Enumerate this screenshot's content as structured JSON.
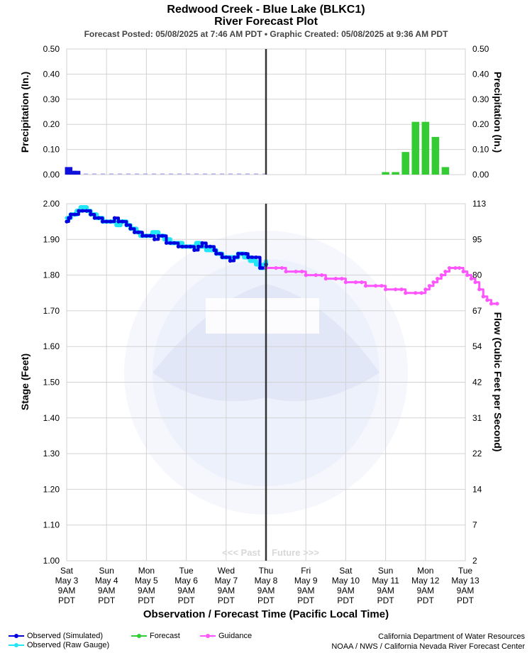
{
  "chart_data": {
    "type": "line",
    "title": "Redwood Creek - Blue Lake (BLKC1)",
    "subtitle": "River Forecast Plot",
    "posted": "Forecast Posted: 05/08/2025 at 7:46 AM PDT  •  Graphic Created: 05/08/2025 at 9:36 AM PDT",
    "x_label": "Observation / Forecast Time (Pacific Local Time)",
    "x_ticks": [
      [
        "Sat",
        "May 3",
        "9AM",
        "PDT"
      ],
      [
        "Sun",
        "May 4",
        "9AM",
        "PDT"
      ],
      [
        "Mon",
        "May 5",
        "9AM",
        "PDT"
      ],
      [
        "Tue",
        "May 6",
        "9AM",
        "PDT"
      ],
      [
        "Wed",
        "May 7",
        "9AM",
        "PDT"
      ],
      [
        "Thu",
        "May 8",
        "9AM",
        "PDT"
      ],
      [
        "Fri",
        "May 9",
        "9AM",
        "PDT"
      ],
      [
        "Sat",
        "May 10",
        "9AM",
        "PDT"
      ],
      [
        "Sun",
        "May 11",
        "9AM",
        "PDT"
      ],
      [
        "Mon",
        "May 12",
        "9AM",
        "PDT"
      ],
      [
        "Tue",
        "May 13",
        "9AM",
        "PDT"
      ]
    ],
    "precip": {
      "y_label": "Precipitation (In.)",
      "y_ticks": [
        "0.00",
        "0.10",
        "0.20",
        "0.30",
        "0.40",
        "0.50"
      ],
      "ylim": [
        0,
        0.5
      ],
      "observed_bars": [
        [
          0.05,
          0.03
        ],
        [
          0.15,
          0.015
        ],
        [
          0.25,
          0.015
        ]
      ],
      "forecast_bars": [
        [
          8.0,
          0.01
        ],
        [
          8.25,
          0.01
        ],
        [
          8.5,
          0.09
        ],
        [
          8.75,
          0.21
        ],
        [
          9.0,
          0.21
        ],
        [
          9.25,
          0.15
        ],
        [
          9.5,
          0.03
        ]
      ]
    },
    "stage": {
      "y_label": "Stage (Feet)",
      "y2_label": "Flow (Cubic Feet per Second)",
      "y_ticks": [
        "1.00",
        "1.10",
        "1.20",
        "1.30",
        "1.40",
        "1.50",
        "1.60",
        "1.70",
        "1.80",
        "1.90",
        "2.00"
      ],
      "y2_ticks": [
        "2",
        "7",
        "14",
        "22",
        "31",
        "42",
        "54",
        "67",
        "80",
        "95",
        "113"
      ],
      "ylim": [
        1.0,
        2.0
      ],
      "now_day": 5.0,
      "past_label": "<<< Past",
      "future_label": "Future >>>",
      "series": [
        {
          "name": "Observed (Raw Gauge)",
          "color": "#22e5f5",
          "points": [
            [
              0,
              1.96
            ],
            [
              0.1,
              1.97
            ],
            [
              0.25,
              1.98
            ],
            [
              0.35,
              1.99
            ],
            [
              0.5,
              1.98
            ],
            [
              0.6,
              1.97
            ],
            [
              0.75,
              1.96
            ],
            [
              0.9,
              1.95
            ],
            [
              1.0,
              1.95
            ],
            [
              1.15,
              1.95
            ],
            [
              1.25,
              1.94
            ],
            [
              1.35,
              1.95
            ],
            [
              1.5,
              1.94
            ],
            [
              1.6,
              1.93
            ],
            [
              1.75,
              1.92
            ],
            [
              1.85,
              1.91
            ],
            [
              2.0,
              1.91
            ],
            [
              2.15,
              1.92
            ],
            [
              2.3,
              1.91
            ],
            [
              2.45,
              1.9
            ],
            [
              2.6,
              1.89
            ],
            [
              2.75,
              1.89
            ],
            [
              2.9,
              1.88
            ],
            [
              3.0,
              1.88
            ],
            [
              3.15,
              1.88
            ],
            [
              3.25,
              1.89
            ],
            [
              3.35,
              1.88
            ],
            [
              3.5,
              1.87
            ],
            [
              3.6,
              1.87
            ],
            [
              3.75,
              1.86
            ],
            [
              3.9,
              1.85
            ],
            [
              4.0,
              1.85
            ],
            [
              4.15,
              1.85
            ],
            [
              4.3,
              1.86
            ],
            [
              4.45,
              1.85
            ],
            [
              4.6,
              1.84
            ],
            [
              4.75,
              1.83
            ],
            [
              4.85,
              1.82
            ],
            [
              4.95,
              1.83
            ],
            [
              5.0,
              1.84
            ]
          ]
        },
        {
          "name": "Observed (Simulated)",
          "color": "#0000e0",
          "points": [
            [
              0,
              1.95
            ],
            [
              0.05,
              1.96
            ],
            [
              0.1,
              1.97
            ],
            [
              0.2,
              1.97
            ],
            [
              0.3,
              1.98
            ],
            [
              0.4,
              1.98
            ],
            [
              0.5,
              1.98
            ],
            [
              0.6,
              1.97
            ],
            [
              0.7,
              1.96
            ],
            [
              0.8,
              1.96
            ],
            [
              0.9,
              1.95
            ],
            [
              1.0,
              1.95
            ],
            [
              1.1,
              1.95
            ],
            [
              1.2,
              1.96
            ],
            [
              1.3,
              1.95
            ],
            [
              1.4,
              1.95
            ],
            [
              1.5,
              1.94
            ],
            [
              1.6,
              1.93
            ],
            [
              1.7,
              1.92
            ],
            [
              1.8,
              1.92
            ],
            [
              1.9,
              1.91
            ],
            [
              2.0,
              1.91
            ],
            [
              2.1,
              1.91
            ],
            [
              2.2,
              1.9
            ],
            [
              2.3,
              1.91
            ],
            [
              2.4,
              1.91
            ],
            [
              2.5,
              1.89
            ],
            [
              2.6,
              1.89
            ],
            [
              2.7,
              1.89
            ],
            [
              2.8,
              1.88
            ],
            [
              2.9,
              1.88
            ],
            [
              3.0,
              1.88
            ],
            [
              3.1,
              1.88
            ],
            [
              3.2,
              1.87
            ],
            [
              3.3,
              1.88
            ],
            [
              3.4,
              1.89
            ],
            [
              3.5,
              1.88
            ],
            [
              3.6,
              1.88
            ],
            [
              3.7,
              1.87
            ],
            [
              3.75,
              1.86
            ],
            [
              3.85,
              1.86
            ],
            [
              3.9,
              1.85
            ],
            [
              4.0,
              1.85
            ],
            [
              4.1,
              1.84
            ],
            [
              4.2,
              1.85
            ],
            [
              4.3,
              1.86
            ],
            [
              4.4,
              1.86
            ],
            [
              4.5,
              1.86
            ],
            [
              4.55,
              1.85
            ],
            [
              4.65,
              1.85
            ],
            [
              4.75,
              1.85
            ],
            [
              4.85,
              1.82
            ],
            [
              4.9,
              1.82
            ],
            [
              5.0,
              1.83
            ]
          ]
        },
        {
          "name": "Guidance",
          "color": "#ff55ff",
          "points": [
            [
              5.0,
              1.82
            ],
            [
              5.25,
              1.82
            ],
            [
              5.4,
              1.82
            ],
            [
              5.5,
              1.81
            ],
            [
              5.75,
              1.81
            ],
            [
              5.9,
              1.81
            ],
            [
              6.0,
              1.8
            ],
            [
              6.25,
              1.8
            ],
            [
              6.4,
              1.8
            ],
            [
              6.5,
              1.79
            ],
            [
              6.75,
              1.79
            ],
            [
              6.9,
              1.79
            ],
            [
              7.0,
              1.78
            ],
            [
              7.25,
              1.78
            ],
            [
              7.4,
              1.78
            ],
            [
              7.5,
              1.77
            ],
            [
              7.75,
              1.77
            ],
            [
              7.9,
              1.77
            ],
            [
              8.0,
              1.76
            ],
            [
              8.25,
              1.76
            ],
            [
              8.4,
              1.76
            ],
            [
              8.5,
              1.75
            ],
            [
              8.75,
              1.75
            ],
            [
              8.9,
              1.75
            ],
            [
              9.0,
              1.76
            ],
            [
              9.1,
              1.77
            ],
            [
              9.2,
              1.78
            ],
            [
              9.3,
              1.79
            ],
            [
              9.4,
              1.8
            ],
            [
              9.5,
              1.81
            ],
            [
              9.6,
              1.82
            ],
            [
              9.75,
              1.82
            ],
            [
              9.85,
              1.82
            ],
            [
              9.95,
              1.81
            ],
            [
              10.05,
              1.8
            ],
            [
              10.15,
              1.79
            ],
            [
              10.25,
              1.78
            ],
            [
              10.35,
              1.76
            ],
            [
              10.45,
              1.74
            ],
            [
              10.55,
              1.73
            ],
            [
              10.65,
              1.72
            ],
            [
              10.8,
              1.72
            ]
          ]
        }
      ]
    },
    "legend": [
      {
        "name": "Observed (Simulated)",
        "color": "#0000e0"
      },
      {
        "name": "Observed (Raw Gauge)",
        "color": "#22e5f5"
      },
      {
        "name": "Forecast",
        "color": "#33cc33"
      },
      {
        "name": "Guidance",
        "color": "#ff55ff"
      }
    ],
    "credit_lines": [
      "California Department of Water Resources",
      "NOAA / NWS / California Nevada River Forecast Center"
    ]
  }
}
